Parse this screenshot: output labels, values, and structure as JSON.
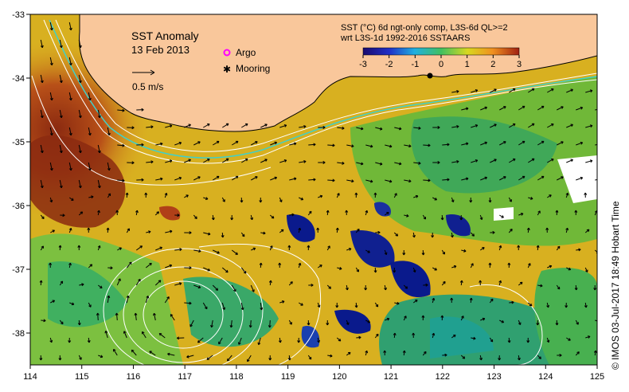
{
  "title": "SST Anomaly",
  "date": "13 Feb 2013",
  "legend": {
    "argo_label": "Argo",
    "mooring_label": "Mooring",
    "vector_scale_label": "0.5 m/s"
  },
  "colorbar": {
    "line1": "SST (°C) 6d ngt-only comp, L3S-6d QL>=2",
    "line2": "wrt L3S-1d 1992-2016 SSTAARS",
    "ticks": [
      "-3",
      "-2",
      "-1",
      "0",
      "1",
      "2",
      "3"
    ],
    "range": [
      -3,
      3
    ]
  },
  "axes": {
    "x_ticks": [
      "114",
      "115",
      "116",
      "117",
      "118",
      "119",
      "120",
      "121",
      "122",
      "123",
      "124",
      "125"
    ],
    "y_ticks": [
      "-33",
      "-34",
      "-35",
      "-36",
      "-37",
      "-38"
    ],
    "lon_range": [
      114,
      125
    ],
    "lat_range": [
      -38.5,
      -33
    ]
  },
  "credit": "© IMOS 03-Jul-2017 18:49 Hobart Time",
  "colors": {
    "land": "#f9c79b",
    "warm_anomaly": "#e0a020",
    "hot_anomaly": "#8b2a10",
    "cool_anomaly": "#2fb060",
    "cold_anomaly": "#0a1a8c",
    "argo": "#ff00ff",
    "mooring": "#000000"
  }
}
